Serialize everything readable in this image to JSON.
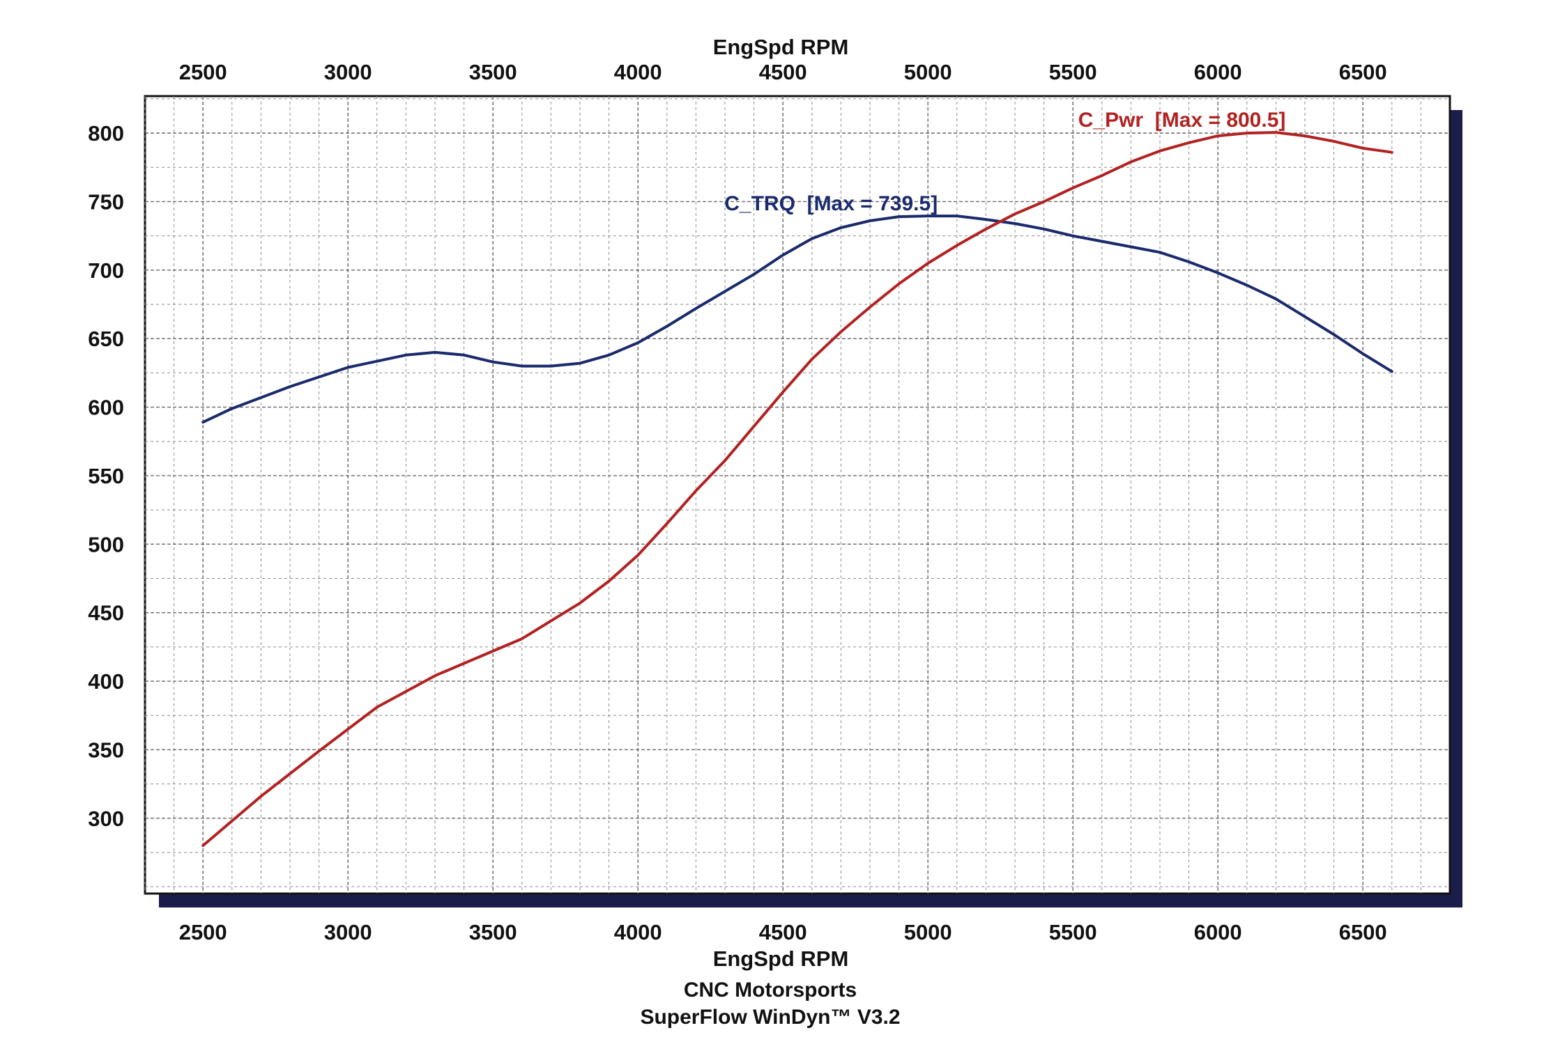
{
  "chart_data": {
    "type": "line",
    "x_axis": {
      "label": "EngSpd RPM",
      "range": [
        2300,
        6800
      ],
      "ticks": [
        2500,
        3000,
        3500,
        4000,
        4500,
        5000,
        5500,
        6000,
        6500
      ],
      "minor_step": 100
    },
    "y_axis": {
      "label": "",
      "range": [
        245,
        827
      ],
      "ticks": [
        300,
        350,
        400,
        450,
        500,
        550,
        600,
        650,
        700,
        750,
        800
      ],
      "minor_step": 25
    },
    "grid": true,
    "series": [
      {
        "name": "C_TRQ",
        "annotation": "C_TRQ  [Max = 739.5]",
        "color": "#1a2a6c",
        "x": [
          2500,
          2600,
          2800,
          3000,
          3200,
          3300,
          3400,
          3500,
          3600,
          3700,
          3800,
          3900,
          4000,
          4100,
          4200,
          4400,
          4500,
          4600,
          4700,
          4800,
          4900,
          5000,
          5100,
          5200,
          5300,
          5400,
          5500,
          5600,
          5700,
          5800,
          5900,
          6000,
          6100,
          6200,
          6300,
          6400,
          6500,
          6600
        ],
        "y": [
          589,
          599,
          615,
          629,
          638,
          640,
          638,
          633,
          630,
          630,
          632,
          638,
          647,
          659,
          672,
          697,
          711,
          723,
          731,
          736,
          739,
          739.5,
          739.5,
          737,
          734,
          730,
          725,
          721,
          717,
          713,
          706,
          698,
          689,
          679,
          666,
          653,
          639,
          626
        ]
      },
      {
        "name": "C_Pwr",
        "annotation": "C_Pwr  [Max = 800.5]",
        "color": "#b22222",
        "x": [
          2500,
          2700,
          2900,
          3100,
          3300,
          3400,
          3600,
          3800,
          3900,
          4000,
          4100,
          4200,
          4300,
          4400,
          4500,
          4600,
          4700,
          4800,
          4900,
          5000,
          5100,
          5200,
          5300,
          5400,
          5500,
          5600,
          5700,
          5800,
          5900,
          6000,
          6100,
          6200,
          6300,
          6400,
          6500,
          6600
        ],
        "y": [
          280,
          316,
          349,
          381,
          404,
          413,
          431,
          457,
          473,
          492,
          515,
          539,
          561,
          586,
          611,
          635,
          655,
          673,
          690,
          705,
          718,
          730,
          741,
          750,
          760,
          769,
          779,
          787,
          793,
          798,
          800,
          800.5,
          798,
          794,
          789,
          786
        ]
      }
    ]
  },
  "footer": {
    "line1": "CNC Motorsports",
    "line2": "SuperFlow WinDyn™ V3.2"
  },
  "colors": {
    "background": "#ffffff",
    "plot_frame": "#111111",
    "shadow": "#1a1d4a",
    "grid": "#8a8a8a"
  }
}
